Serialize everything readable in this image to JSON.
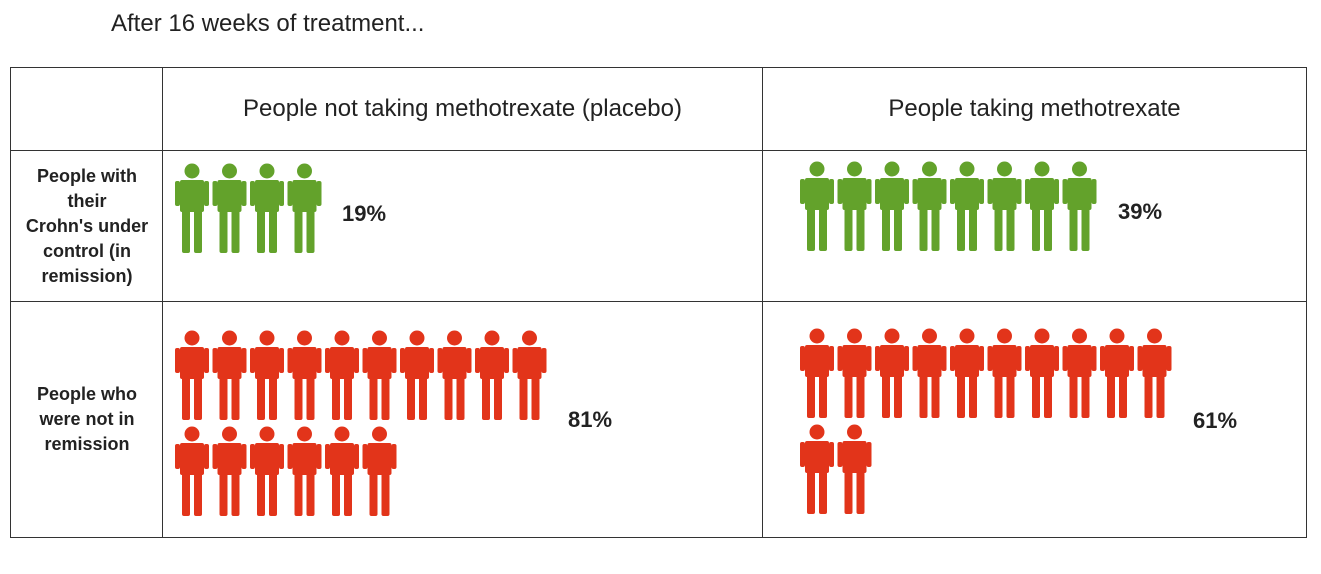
{
  "page": {
    "title": "After 16 weeks of treatment..."
  },
  "colors": {
    "remission": "#63a22b",
    "not_remission": "#e2341a",
    "border": "#333333",
    "text": "#222222"
  },
  "chart_data": {
    "type": "table",
    "columns": [
      "People not taking methotrexate (placebo)",
      "People taking methotrexate"
    ],
    "rows": [
      {
        "label_lines": [
          "People with",
          "their",
          "Crohn's under",
          "control (in",
          "remission)"
        ],
        "color_key": "remission",
        "icon": "person-icon",
        "cells": [
          {
            "icons": 4,
            "value": 19,
            "label": "19%"
          },
          {
            "icons": 8,
            "value": 39,
            "label": "39%"
          }
        ]
      },
      {
        "label_lines": [
          "People who",
          "were not in",
          "remission"
        ],
        "color_key": "not_remission",
        "icon": "person-icon",
        "cells": [
          {
            "icons": 16,
            "value": 81,
            "label": "81%"
          },
          {
            "icons": 12,
            "value": 61,
            "label": "61%"
          }
        ]
      }
    ]
  }
}
